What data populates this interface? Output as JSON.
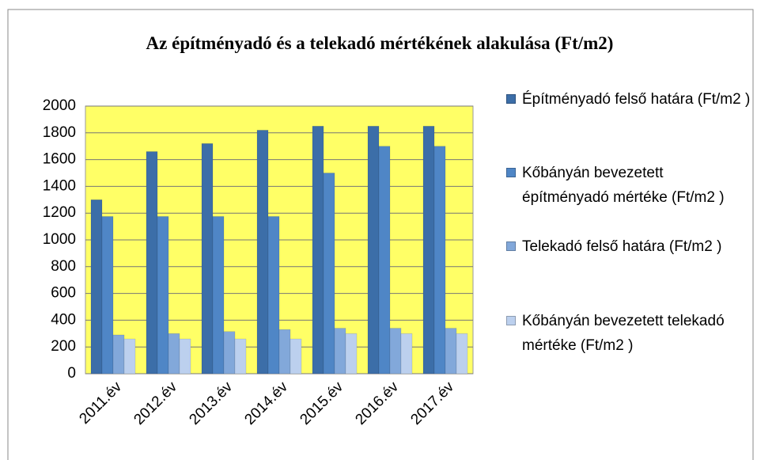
{
  "chart_data": {
    "type": "bar",
    "title": "Az építményadó és a telekadó mértékének alakulása (Ft/m2)",
    "categories": [
      "2011.év",
      "2012.év",
      "2013.év",
      "2014.év",
      "2015.év",
      "2016.év",
      "2017.év"
    ],
    "series": [
      {
        "name": "Építményadó felső határa (Ft/m2 )",
        "color": "#3c6ea8",
        "values": [
          1300,
          1660,
          1720,
          1820,
          1850,
          1850,
          1850
        ]
      },
      {
        "name": "Kőbányán bevezetett építményadó mértéke (Ft/m2 )",
        "color": "#4f86c6",
        "values": [
          1175,
          1175,
          1175,
          1175,
          1500,
          1700,
          1700
        ]
      },
      {
        "name": "Telekadó felső határa (Ft/m2 )",
        "color": "#82a8da",
        "values": [
          290,
          300,
          315,
          330,
          340,
          340,
          340
        ]
      },
      {
        "name": "Kőbányán bevezetett telekadó mértéke (Ft/m2 )",
        "color": "#bcd0ee",
        "values": [
          260,
          260,
          260,
          260,
          300,
          300,
          300
        ]
      }
    ],
    "ylim": [
      0,
      2000
    ],
    "yticks": [
      0,
      200,
      400,
      600,
      800,
      1000,
      1200,
      1400,
      1600,
      1800,
      2000
    ],
    "grid": true,
    "legend": "right",
    "plot_background": "#ffff66"
  }
}
